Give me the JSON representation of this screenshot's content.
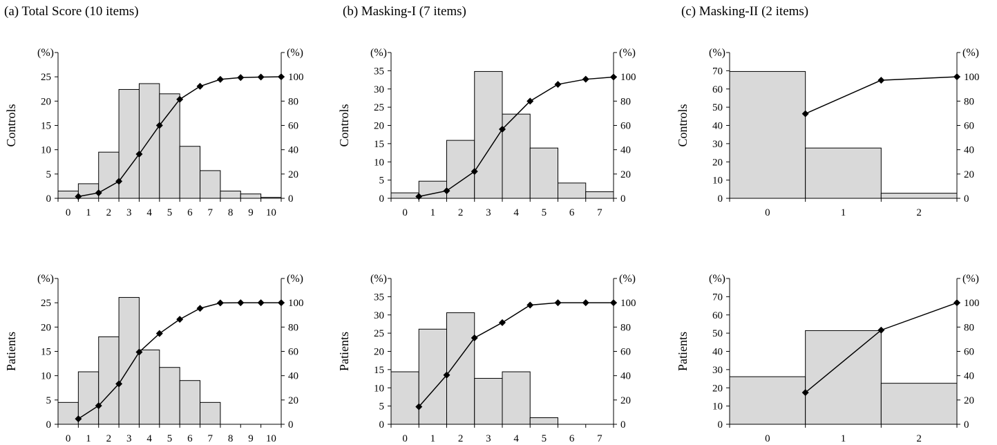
{
  "panels": [
    {
      "id": "a",
      "title": "(a) Total Score (10 items)"
    },
    {
      "id": "b",
      "title": "(b) Masking-I (7 items)"
    },
    {
      "id": "c",
      "title": "(c) Masking-II (2 items)"
    }
  ],
  "unit_label": "(%)",
  "chart_data": [
    {
      "panel": "a",
      "group": "Controls",
      "type": "bar+line",
      "categories": [
        "0",
        "1",
        "2",
        "3",
        "4",
        "5",
        "6",
        "7",
        "8",
        "9",
        "10"
      ],
      "bars": [
        1.5,
        3,
        9.5,
        22.4,
        23.6,
        21.5,
        10.7,
        5.7,
        1.5,
        0.9,
        0.2
      ],
      "cumulative": [
        1.5,
        4.5,
        14,
        36.4,
        60,
        81.5,
        92.2,
        97.9,
        99.4,
        99.8,
        100
      ],
      "ylabel": "Controls",
      "ylim": [
        0,
        30
      ],
      "yticks": [
        0,
        5,
        10,
        15,
        20,
        25
      ],
      "y2lim": [
        0,
        120
      ],
      "y2ticks": [
        0,
        20,
        40,
        60,
        80,
        100
      ]
    },
    {
      "panel": "b",
      "group": "Controls",
      "type": "bar+line",
      "categories": [
        "0",
        "1",
        "2",
        "3",
        "4",
        "5",
        "6",
        "7"
      ],
      "bars": [
        1.5,
        4.7,
        15.9,
        34.8,
        23.1,
        13.8,
        4.2,
        1.8
      ],
      "cumulative": [
        1.5,
        6.2,
        22.1,
        56.9,
        80.0,
        93.8,
        98.0,
        99.8
      ],
      "ylabel": "Controls",
      "ylim": [
        0,
        40
      ],
      "yticks": [
        0,
        5,
        10,
        15,
        20,
        25,
        30,
        35
      ],
      "y2lim": [
        0,
        120
      ],
      "y2ticks": [
        0,
        20,
        40,
        60,
        80,
        100
      ]
    },
    {
      "panel": "c",
      "group": "Controls",
      "type": "bar+line",
      "categories": [
        "0",
        "1",
        "2"
      ],
      "bars": [
        69.6,
        27.6,
        2.8
      ],
      "cumulative": [
        69.6,
        97.2,
        100
      ],
      "ylabel": "Controls",
      "ylim": [
        0,
        80
      ],
      "yticks": [
        0,
        10,
        20,
        30,
        40,
        50,
        60,
        70
      ],
      "y2lim": [
        0,
        120
      ],
      "y2ticks": [
        0,
        20,
        40,
        60,
        80,
        100
      ]
    },
    {
      "panel": "a",
      "group": "Patients",
      "type": "bar+line",
      "categories": [
        "0",
        "1",
        "2",
        "3",
        "4",
        "5",
        "6",
        "7",
        "8",
        "9",
        "10"
      ],
      "bars": [
        4.5,
        10.8,
        18,
        26.1,
        15.3,
        11.7,
        9,
        4.5,
        0,
        0,
        0
      ],
      "cumulative": [
        4.5,
        15.3,
        33.3,
        59.4,
        74.7,
        86.4,
        95.4,
        99.9,
        100,
        100,
        100
      ],
      "ylabel": "Patients",
      "ylim": [
        0,
        30
      ],
      "yticks": [
        0,
        5,
        10,
        15,
        20,
        25
      ],
      "y2lim": [
        0,
        120
      ],
      "y2ticks": [
        0,
        20,
        40,
        60,
        80,
        100
      ]
    },
    {
      "panel": "b",
      "group": "Patients",
      "type": "bar+line",
      "categories": [
        "0",
        "1",
        "2",
        "3",
        "4",
        "5",
        "6",
        "7"
      ],
      "bars": [
        14.4,
        26.1,
        30.6,
        12.6,
        14.4,
        1.8,
        0,
        0
      ],
      "cumulative": [
        14.4,
        40.5,
        71.1,
        83.7,
        98.1,
        100,
        100,
        100
      ],
      "ylabel": "Patients",
      "ylim": [
        0,
        40
      ],
      "yticks": [
        0,
        5,
        10,
        15,
        20,
        25,
        30,
        35
      ],
      "y2lim": [
        0,
        120
      ],
      "y2ticks": [
        0,
        20,
        40,
        60,
        80,
        100
      ]
    },
    {
      "panel": "c",
      "group": "Patients",
      "type": "bar+line",
      "categories": [
        "0",
        "1",
        "2"
      ],
      "bars": [
        26.1,
        51.4,
        22.5
      ],
      "cumulative": [
        26.1,
        77.5,
        100
      ],
      "ylabel": "Patients",
      "ylim": [
        0,
        80
      ],
      "yticks": [
        0,
        10,
        20,
        30,
        40,
        50,
        60,
        70
      ],
      "y2lim": [
        0,
        120
      ],
      "y2ticks": [
        0,
        20,
        40,
        60,
        80,
        100
      ]
    }
  ],
  "colors": {
    "bar_fill": "#d9d9d9",
    "bar_stroke": "#000000",
    "line": "#000000"
  }
}
